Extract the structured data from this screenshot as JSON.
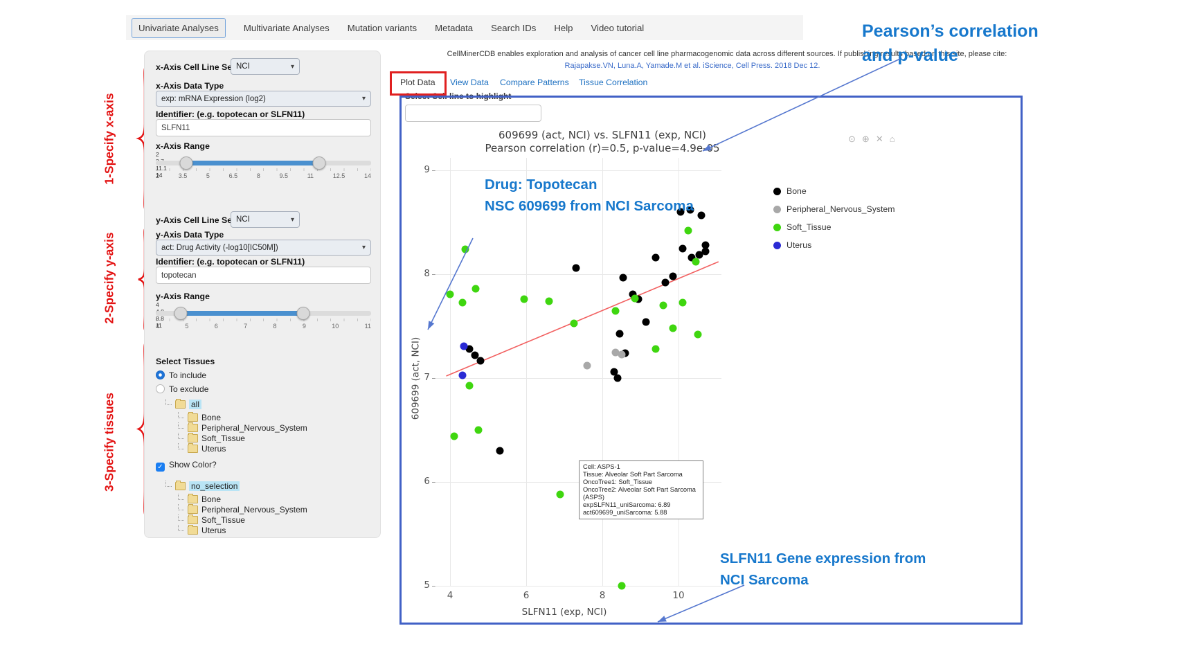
{
  "nav": {
    "tabs": [
      {
        "label": "Univariate Analyses",
        "active": true
      },
      {
        "label": "Multivariate Analyses",
        "active": false
      },
      {
        "label": "Mutation variants",
        "active": false
      },
      {
        "label": "Metadata",
        "active": false
      },
      {
        "label": "Search IDs",
        "active": false
      },
      {
        "label": "Help",
        "active": false
      },
      {
        "label": "Video tutorial",
        "active": false
      }
    ]
  },
  "header": {
    "description": "CellMinerCDB enables exploration and analysis of cancer cell line pharmacogenomic data across different sources. If publishing results based on this site, please cite:",
    "citation": "Rajapakse.VN, Luna.A, Yamade.M et al. iScience, Cell Press. 2018 Dec 12."
  },
  "subtabs": [
    {
      "label": "Plot Data",
      "active": true
    },
    {
      "label": "View Data",
      "active": false
    },
    {
      "label": "Compare Patterns",
      "active": false
    },
    {
      "label": "Tissue Correlation",
      "active": false
    }
  ],
  "sidebar": {
    "x_axis": {
      "cell_line_set_label": "x-Axis Cell Line Set",
      "cell_line_set_value": "NCI",
      "data_type_label": "x-Axis Data Type",
      "data_type_value": "exp: mRNA Expression (log2)",
      "identifier_label": "Identifier: (e.g. topotecan or SLFN11)",
      "identifier_value": "SLFN11",
      "range_label": "x-Axis Range",
      "range": {
        "min": 2,
        "max": 14,
        "low": 3.7,
        "high": 11.1
      },
      "range_labels": {
        "min": "2",
        "low": "3.7",
        "high": "11.1",
        "max": "14"
      },
      "scale_labels": [
        "2",
        "3.5",
        "5",
        "6.5",
        "8",
        "9.5",
        "11",
        "12.5",
        "14"
      ]
    },
    "y_axis": {
      "cell_line_set_label": "y-Axis Cell Line Set",
      "cell_line_set_value": "NCI",
      "data_type_label": "y-Axis Data Type",
      "data_type_value": "act: Drug Activity (-log10[IC50M])",
      "identifier_label": "Identifier: (e.g. topotecan or SLFN11)",
      "identifier_value": "topotecan",
      "range_label": "y-Axis Range",
      "range": {
        "min": 4,
        "max": 11,
        "low": 4.8,
        "high": 8.8
      },
      "range_labels": {
        "min": "4",
        "low": "4.8",
        "high": "8.8",
        "max": "11"
      },
      "scale_labels": [
        "4",
        "5",
        "6",
        "7",
        "8",
        "9",
        "10",
        "11"
      ]
    },
    "tissues": {
      "title": "Select Tissues",
      "options": [
        {
          "label": "To include",
          "selected": true
        },
        {
          "label": "To exclude",
          "selected": false
        }
      ],
      "include_tree": {
        "root": "all",
        "children": [
          "Bone",
          "Peripheral_Nervous_System",
          "Soft_Tissue",
          "Uterus"
        ]
      },
      "show_color_label": "Show Color?",
      "show_color_checked": true,
      "color_tree": {
        "root": "no_selection",
        "children": [
          "Bone",
          "Peripheral_Nervous_System",
          "Soft_Tissue",
          "Uterus"
        ]
      }
    }
  },
  "plot": {
    "highlight_label": "Select Cell line to highlight",
    "highlight_value": "",
    "modebar_icons": [
      {
        "name": "camera-icon",
        "glyph": "⊙"
      },
      {
        "name": "zoom-in-icon",
        "glyph": "⊕"
      },
      {
        "name": "close-icon",
        "glyph": "✕"
      },
      {
        "name": "home-icon",
        "glyph": "⌂"
      }
    ]
  },
  "tooltip": {
    "lines": [
      "Cell: ASPS-1",
      "Tissue: Alveolar Soft Part Sarcoma",
      "OncoTree1: Soft_Tissue",
      "OncoTree2: Alveolar Soft Part Sarcoma (ASPS)",
      "expSLFN11_uniSarcoma: 6.89",
      "act609699_uniSarcoma: 5.88"
    ]
  },
  "annotations": {
    "step1": "1-Specify x-axis",
    "step2": "2-Specify y-axis",
    "step3": "3-Specify tissues",
    "pearson_line1": "Pearson’s correlation",
    "pearson_line2": "and p-value",
    "drug_line1": "Drug: Topotecan",
    "drug_line2": "NSC 609699 from NCI Sarcoma",
    "gene_line1": "SLFN11 Gene expression from",
    "gene_line2": "NCI Sarcoma",
    "blue": "#1778cc",
    "red": "#e31414"
  },
  "chart_data": {
    "type": "scatter",
    "title": "609699 (act, NCI) vs. SLFN11 (exp, NCI)",
    "subtitle": "Pearson correlation (r)=0.5, p-value=4.9e-05",
    "xlabel": "SLFN11 (exp, NCI)",
    "ylabel": "609699 (act, NCI)",
    "xlim": [
      3.3,
      11.3
    ],
    "ylim": [
      4.55,
      9.05
    ],
    "xticks": [
      4,
      6,
      8,
      10
    ],
    "yticks": [
      9,
      8,
      7,
      6,
      5
    ],
    "grid": true,
    "legend_position": "right",
    "series": [
      {
        "name": "Bone",
        "color": "#000000",
        "points": [
          [
            10.05,
            8.6
          ],
          [
            10.3,
            8.62
          ],
          [
            10.6,
            8.57
          ],
          [
            10.7,
            8.28
          ],
          [
            10.1,
            8.25
          ],
          [
            7.3,
            8.06
          ],
          [
            8.55,
            7.97
          ],
          [
            9.4,
            8.16
          ],
          [
            9.65,
            7.92
          ],
          [
            9.85,
            7.98
          ],
          [
            10.35,
            8.16
          ],
          [
            10.55,
            8.19
          ],
          [
            10.7,
            8.22
          ],
          [
            9.15,
            7.54
          ],
          [
            8.8,
            7.81
          ],
          [
            8.95,
            7.76
          ],
          [
            8.45,
            7.43
          ],
          [
            8.6,
            7.24
          ],
          [
            8.3,
            7.06
          ],
          [
            8.4,
            7.0
          ],
          [
            5.3,
            6.3
          ],
          [
            4.65,
            7.22
          ],
          [
            4.8,
            7.17
          ],
          [
            4.5,
            7.28
          ]
        ]
      },
      {
        "name": "Peripheral_Nervous_System",
        "color": "#a8a8a8",
        "points": [
          [
            7.6,
            7.12
          ],
          [
            8.35,
            7.25
          ],
          [
            8.5,
            7.23
          ]
        ]
      },
      {
        "name": "Soft_Tissue",
        "color": "#3fd60f",
        "points": [
          [
            4.0,
            7.81
          ],
          [
            4.4,
            8.24
          ],
          [
            4.68,
            7.86
          ],
          [
            4.32,
            7.73
          ],
          [
            5.95,
            7.76
          ],
          [
            6.6,
            7.74
          ],
          [
            7.25,
            7.53
          ],
          [
            8.35,
            7.65
          ],
          [
            8.85,
            7.77
          ],
          [
            9.6,
            7.7
          ],
          [
            10.1,
            7.73
          ],
          [
            9.85,
            7.48
          ],
          [
            9.4,
            7.28
          ],
          [
            10.5,
            7.42
          ],
          [
            10.45,
            8.12
          ],
          [
            10.25,
            8.42
          ],
          [
            4.5,
            6.93
          ],
          [
            4.1,
            6.44
          ],
          [
            4.75,
            6.5
          ],
          [
            6.89,
            5.88
          ],
          [
            8.5,
            5.0
          ]
        ]
      },
      {
        "name": "Uterus",
        "color": "#2a2ad4",
        "points": [
          [
            4.37,
            7.31
          ],
          [
            4.32,
            7.03
          ]
        ]
      }
    ],
    "trend_line": {
      "x1": 3.9,
      "y1": 7.02,
      "x2": 11.05,
      "y2": 8.12,
      "color": "#f26161"
    },
    "highlighted_point": {
      "series": "Soft_Tissue",
      "x": 6.89,
      "y": 5.88,
      "label": "ASPS-1"
    }
  }
}
